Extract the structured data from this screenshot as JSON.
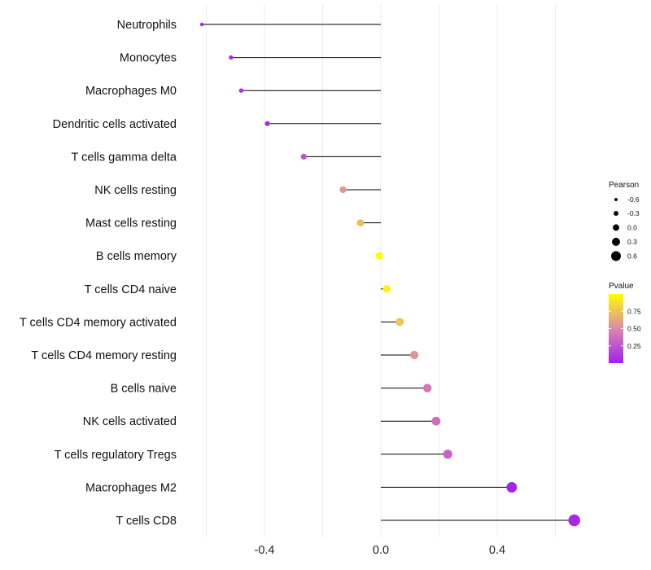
{
  "chart_data": {
    "type": "lollipop",
    "title": "",
    "xlabel": "",
    "ylabel": "",
    "xlim": [
      -0.65,
      0.68
    ],
    "x_ticks": [
      -0.4,
      0.0,
      0.4
    ],
    "x_tick_labels": [
      "-0.4",
      "0.0",
      "0.4"
    ],
    "categories": [
      "Neutrophils",
      "Monocytes",
      "Macrophages M0",
      "Dendritic cells activated",
      "T cells gamma delta",
      "NK cells resting",
      "Mast cells resting",
      "B cells memory",
      "T cells CD4 naive",
      "T cells CD4 memory activated",
      "T cells CD4 memory resting",
      "B cells naive",
      "NK cells activated",
      "T cells regulatory  Tregs",
      "Macrophages M2",
      "T cells CD8"
    ],
    "pearson": [
      -0.615,
      -0.515,
      -0.48,
      -0.39,
      -0.265,
      -0.13,
      -0.07,
      -0.005,
      0.02,
      0.065,
      0.115,
      0.16,
      0.19,
      0.23,
      0.45,
      0.665
    ],
    "pvalue": [
      0.02,
      0.05,
      0.08,
      0.06,
      0.25,
      0.55,
      0.72,
      1.0,
      0.95,
      0.75,
      0.55,
      0.42,
      0.38,
      0.32,
      0.02,
      0.05
    ],
    "legend_size": {
      "title": "Pearson",
      "entries": [
        "-0.6",
        "-0.3",
        "0.0",
        "0.3",
        "0.6"
      ],
      "values": [
        -0.6,
        -0.3,
        0.0,
        0.3,
        0.6
      ]
    },
    "legend_color": {
      "title": "Pvalue",
      "ticks": [
        "0.75",
        "0.50",
        "0.25"
      ],
      "tick_values": [
        0.75,
        0.5,
        0.25
      ],
      "range": [
        0.0,
        1.0
      ]
    },
    "colors": {
      "low": "#a020f0",
      "mid": "#dd88aa",
      "high": "#ffff00",
      "stem": "#000000",
      "grid": "#ebebeb"
    }
  }
}
